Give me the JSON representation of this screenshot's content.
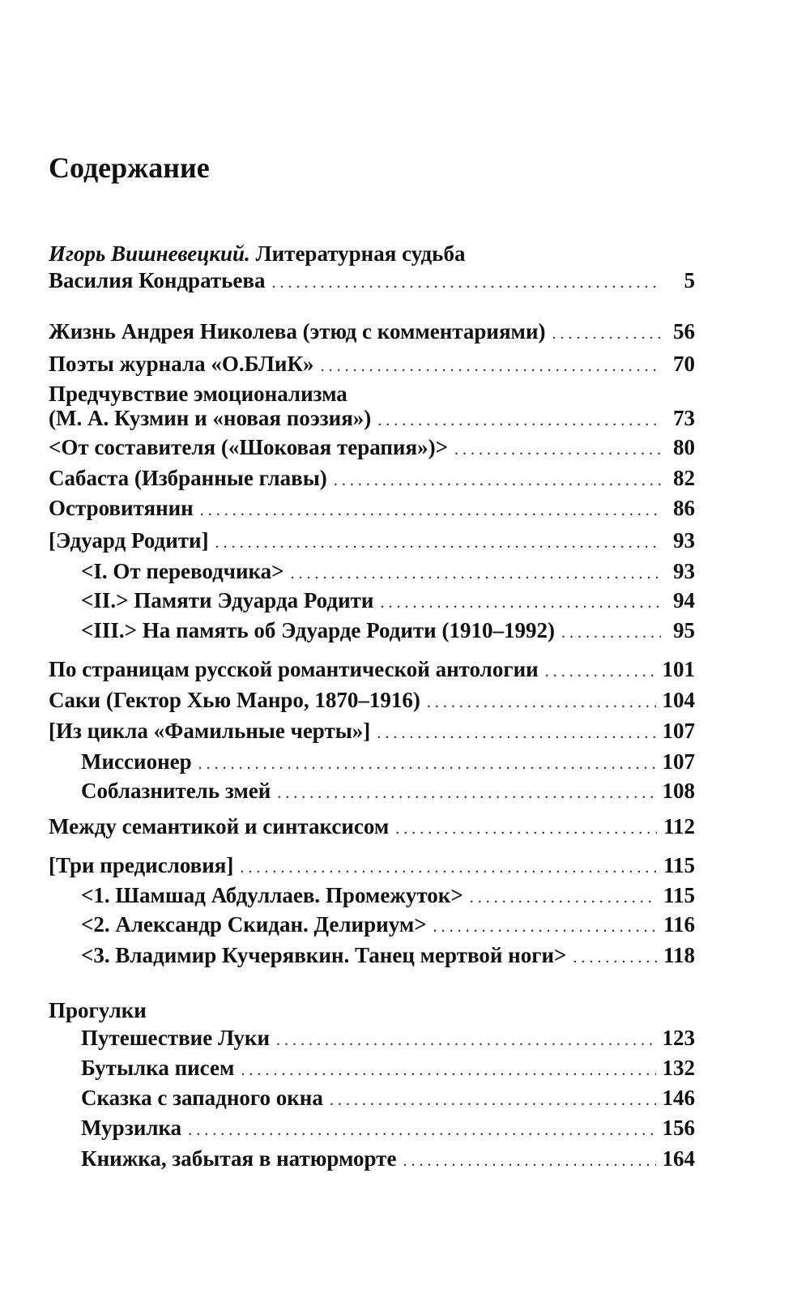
{
  "title": "Содержание",
  "entries": [
    {
      "author": "Игорь Вишневецкий.",
      "line1": "Литературная судьба",
      "line2": "Василия Кондратьева",
      "page": "5"
    },
    {
      "label": "Жизнь Андрея Николева (этюд с комментариями)",
      "page": "56"
    },
    {
      "label": "Поэты журнала «О.БЛиК»",
      "page": "70"
    },
    {
      "line1": "Предчувствие эмоционализма",
      "line2": "(М. А. Кузмин и «новая поэзия»)",
      "page": "73"
    },
    {
      "label": "<От составителя («Шоковая терапия»)>",
      "page": "80"
    },
    {
      "label": "Сабаста (Избранные главы)",
      "page": "82"
    },
    {
      "label": "Островитянин",
      "page": "86"
    },
    {
      "label": "[Эдуард Родити]",
      "page": "93"
    },
    {
      "label": "<I. От переводчика>",
      "page": "93"
    },
    {
      "label": "<II.> Памяти Эдуарда Родити",
      "page": "94"
    },
    {
      "label": "<III.> На память об Эдуарде Родити (1910–1992)",
      "page": "95"
    },
    {
      "label": "По страницам русской романтической антологии",
      "page": "101"
    },
    {
      "label": "Саки (Гектор Хью Манро, 1870–1916)",
      "page": "104"
    },
    {
      "label": "[Из цикла «Фамильные черты»]",
      "page": "107"
    },
    {
      "label": "Миссионер",
      "page": "107"
    },
    {
      "label": "Соблазнитель змей",
      "page": "108"
    },
    {
      "label": "Между семантикой и синтаксисом",
      "page": "112"
    },
    {
      "label": "[Три предисловия]",
      "page": "115"
    },
    {
      "label": "<1. Шамшад Абдуллаев. Промежуток>",
      "page": "115"
    },
    {
      "label": "<2. Александр Скидан. Делириум>",
      "page": "116"
    },
    {
      "label": "<3. Владимир Кучерявкин. Танец мертвой ноги>",
      "page": "118"
    }
  ],
  "section": {
    "heading": "Прогулки",
    "entries": [
      {
        "label": "Путешествие Луки",
        "page": "123"
      },
      {
        "label": "Бутылка писем",
        "page": "132"
      },
      {
        "label": "Сказка с западного окна",
        "page": "146"
      },
      {
        "label": "Мурзилка",
        "page": "156"
      },
      {
        "label": "Книжка, забытая в натюрморте",
        "page": "164"
      }
    ]
  }
}
